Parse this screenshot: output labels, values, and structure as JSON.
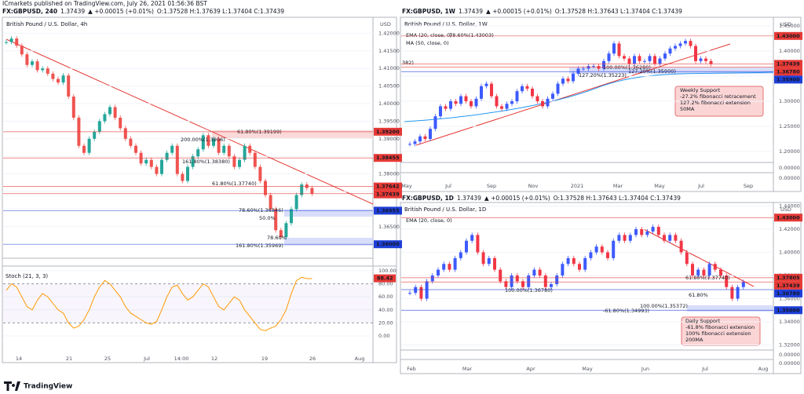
{
  "header": {
    "publisher": "ICmarkets published on TradingView.com, July 26, 2021 01:56:36 BST"
  },
  "panels": [
    {
      "symbol": "FX:GBPUSD, 240",
      "quote": "1.37439",
      "change": "▲ +0.00015 (+0.01%)",
      "ohlc": "O:1.37528 H:1.37639 L:1.37404 C:1.37439",
      "title": "British Pound / U.S. Dollar, 4h",
      "currency": "USD",
      "up_color": "#26a69a",
      "down_color": "#ef5350",
      "price_ticks": [
        {
          "value": 1.42,
          "label": "1.42000"
        },
        {
          "value": 1.415,
          "label": "1.41500"
        },
        {
          "value": 1.41,
          "label": "1.41000"
        },
        {
          "value": 1.405,
          "label": "1.40500"
        },
        {
          "value": 1.4,
          "label": "1.40000"
        },
        {
          "value": 1.395,
          "label": "1.39500"
        },
        {
          "value": 1.39,
          "label": "1.39000"
        },
        {
          "value": 1.385,
          "label": "1.38500"
        },
        {
          "value": 1.38,
          "label": "1.38000"
        },
        {
          "value": 1.375,
          "label": "1.37500"
        },
        {
          "value": 1.37,
          "label": "1.37000"
        },
        {
          "value": 1.365,
          "label": "1.36500"
        }
      ],
      "time_labels": [
        "14",
        "21",
        "25",
        "Jul",
        "14:00",
        "12",
        "19",
        "26",
        "Aug"
      ],
      "tags": [
        {
          "value": 1.392,
          "label": "1.39200",
          "color": "#e53935"
        },
        {
          "value": 1.38455,
          "label": "1.38455",
          "color": "#e53935"
        },
        {
          "value": 1.37642,
          "label": "1.37642",
          "color": "#e53935"
        },
        {
          "value": 1.37439,
          "label": "1.37439",
          "color": "#e53935"
        },
        {
          "value": 1.36955,
          "label": "1.36955",
          "color": "#1e3fd8"
        },
        {
          "value": 1.36,
          "label": "1.36000",
          "color": "#1e3fd8"
        }
      ],
      "annotations": [
        "61.80%(1.39199)",
        "200.00%(1.3906)",
        "161.80%(1.38380)",
        "61.80%(1.37740)",
        "78.60%(1.36846)",
        "50.0%",
        "78.60%",
        "161.80%(1.35969)"
      ],
      "closes": [
        1.4175,
        1.4185,
        1.4165,
        1.414,
        1.411,
        1.412,
        1.4095,
        1.41,
        1.4085,
        1.407,
        1.406,
        1.408,
        1.402,
        1.396,
        1.388,
        1.386,
        1.39,
        1.392,
        1.395,
        1.397,
        1.399,
        1.396,
        1.393,
        1.39,
        1.388,
        1.386,
        1.383,
        1.384,
        1.382,
        1.38,
        1.384,
        1.386,
        1.388,
        1.38,
        1.378,
        1.382,
        1.385,
        1.387,
        1.391,
        1.388,
        1.39,
        1.386,
        1.388,
        1.385,
        1.382,
        1.384,
        1.388,
        1.386,
        1.382,
        1.378,
        1.374,
        1.37,
        1.364,
        1.362,
        1.366,
        1.37,
        1.374,
        1.377,
        1.376,
        1.3744
      ],
      "stoch": {
        "title": "Stoch (21, 3, 3)",
        "ticks": [
          {
            "value": 100,
            "label": "100.00"
          },
          {
            "value": 80,
            "label": "80.00"
          },
          {
            "value": 60,
            "label": "60.00"
          },
          {
            "value": 40,
            "label": "40.00"
          },
          {
            "value": 20,
            "label": "20.00"
          },
          {
            "value": 0,
            "label": "0.00"
          }
        ],
        "values": [
          70,
          80,
          75,
          60,
          45,
          40,
          55,
          65,
          60,
          50,
          40,
          35,
          20,
          12,
          15,
          25,
          40,
          60,
          75,
          85,
          80,
          70,
          60,
          45,
          35,
          30,
          25,
          20,
          18,
          22,
          40,
          60,
          75,
          78,
          65,
          55,
          60,
          70,
          80,
          75,
          60,
          45,
          40,
          50,
          60,
          55,
          40,
          30,
          20,
          10,
          8,
          12,
          15,
          25,
          40,
          65,
          85,
          90,
          88,
          88
        ],
        "tag": {
          "value": 88.42,
          "label": "88.42"
        }
      }
    },
    {
      "symbol": "FX:GBPUSD, 1W",
      "quote": "1.37439",
      "change": "▲ +0.00015 (+0.01%)",
      "ohlc": "O:1.37528 H:1.37643 L:1.37404 C:1.37439",
      "title": "British Pound / U.S. Dollar, 1W",
      "currency": "USD",
      "up_color": "#3d5afe",
      "down_color": "#f23645",
      "price_ticks": [
        {
          "value": 1.45,
          "label": "1.45000"
        },
        {
          "value": 1.4,
          "label": "1.40000"
        },
        {
          "value": 1.35,
          "label": "1.35000"
        },
        {
          "value": 1.3,
          "label": "1.30000"
        },
        {
          "value": 1.25,
          "label": "1.25000"
        },
        {
          "value": 1.2,
          "label": "1.20000"
        }
      ],
      "sub_labels": [
        "0.00000",
        "0.00000"
      ],
      "time_labels": [
        "May",
        "Jul",
        "Sep",
        "Nov",
        "2021",
        "Mar",
        "May",
        "Jul",
        "Sep"
      ],
      "tags": [
        {
          "value": 1.43,
          "label": "1.43000",
          "color": "#e53935"
        },
        {
          "value": 1.37439,
          "label": "1.37439",
          "color": "#e53935"
        },
        {
          "value": 1.3678,
          "label": "1.36780",
          "color": "#e53935"
        },
        {
          "value": 1.359,
          "label": "1.35900",
          "color": "#1e3fd8"
        }
      ],
      "annotations": [
        "EMA (20, close, 0)",
        "MA (50, close, 0)",
        "78.60%(1.43003)",
        "382)",
        "100.00%(1.36280)",
        "127.20%(1.35900)",
        "127.20%(1.35223)"
      ],
      "note": [
        "Weekly Support",
        "-27.2% fibonacci retracement",
        "127.2% fibonacci extension",
        "50MA"
      ],
      "closes": [
        1.215,
        1.22,
        1.23,
        1.225,
        1.245,
        1.27,
        1.29,
        1.285,
        1.3,
        1.295,
        1.31,
        1.3,
        1.29,
        1.305,
        1.33,
        1.335,
        1.31,
        1.29,
        1.285,
        1.295,
        1.3,
        1.32,
        1.33,
        1.325,
        1.31,
        1.3,
        1.29,
        1.305,
        1.315,
        1.335,
        1.345,
        1.34,
        1.355,
        1.365,
        1.365,
        1.37,
        1.37,
        1.365,
        1.38,
        1.395,
        1.415,
        1.39,
        1.385,
        1.375,
        1.39,
        1.38,
        1.38,
        1.39,
        1.375,
        1.385,
        1.395,
        1.405,
        1.41,
        1.415,
        1.42,
        1.41,
        1.38,
        1.385,
        1.38,
        1.3744
      ]
    },
    {
      "symbol": "FX:GBPUSD, 1D",
      "quote": "1.37439",
      "change": "▲ +0.00015 (+0.01%)",
      "ohlc": "O:1.37528 H:1.37643 L:1.37404 C:1.37439",
      "title": "British Pound / U.S. Dollar, 1D",
      "currency": "USD",
      "up_color": "#3d5afe",
      "down_color": "#f23645",
      "price_ticks": [
        {
          "value": 1.44,
          "label": "1.44000"
        },
        {
          "value": 1.42,
          "label": "1.42000"
        },
        {
          "value": 1.4,
          "label": "1.40000"
        },
        {
          "value": 1.38,
          "label": "1.38000"
        },
        {
          "value": 1.36,
          "label": "1.36000"
        },
        {
          "value": 1.34,
          "label": "1.34000"
        },
        {
          "value": 1.32,
          "label": "1.32000"
        }
      ],
      "sub_labels": [
        "0.00000",
        "0.00000"
      ],
      "time_labels": [
        "Feb",
        "Mar",
        "Apr",
        "May",
        "Jun",
        "Jul",
        "Aug"
      ],
      "tags": [
        {
          "value": 1.43,
          "label": "1.43000",
          "color": "#e53935"
        },
        {
          "value": 1.37805,
          "label": "1.37805",
          "color": "#e53935"
        },
        {
          "value": 1.37439,
          "label": "1.37439",
          "color": "#e53935"
        },
        {
          "value": 1.3678,
          "label": "1.36780",
          "color": "#1e3fd8"
        },
        {
          "value": 1.35,
          "label": "1.35000",
          "color": "#1e3fd8"
        }
      ],
      "annotations": [
        "EMA (20, close, 0)",
        "100.00%(1.36780)",
        "61.80%(1.37740)",
        "61.80%",
        "100.00%(1.35372)",
        "-61.80%(1.34993)"
      ],
      "note": [
        "Daily Support",
        "-61.8% fibonacci extension",
        "100% fibonacci extension",
        "200MA"
      ],
      "closes": [
        1.365,
        1.37,
        1.36,
        1.375,
        1.38,
        1.385,
        1.39,
        1.385,
        1.395,
        1.4,
        1.41,
        1.415,
        1.4,
        1.39,
        1.395,
        1.385,
        1.375,
        1.37,
        1.38,
        1.375,
        1.37,
        1.38,
        1.385,
        1.38,
        1.37,
        1.3725,
        1.38,
        1.39,
        1.395,
        1.39,
        1.385,
        1.395,
        1.4,
        1.405,
        1.4,
        1.395,
        1.41,
        1.415,
        1.41,
        1.415,
        1.42,
        1.415,
        1.418,
        1.422,
        1.415,
        1.41,
        1.415,
        1.41,
        1.4,
        1.39,
        1.38,
        1.385,
        1.38,
        1.39,
        1.385,
        1.38,
        1.37,
        1.36,
        1.37,
        1.3744
      ]
    }
  ],
  "footer": {
    "brand": "TradingView"
  }
}
